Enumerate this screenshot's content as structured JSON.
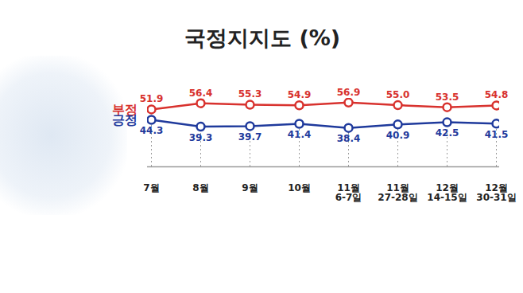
{
  "chart_data": {
    "type": "line",
    "title": "국정지지도 (%)",
    "categories": [
      "7월",
      "8월",
      "9월",
      "10월",
      "11월\n6-7일",
      "11월\n27-28일",
      "12월\n14-15일",
      "12월\n30-31일"
    ],
    "series": [
      {
        "name": "부정",
        "color": "#d8322e",
        "values": [
          51.9,
          56.4,
          55.3,
          54.9,
          56.9,
          55.0,
          53.5,
          54.8
        ],
        "value_labels": [
          "51.9",
          "56.4",
          "55.3",
          "54.9",
          "56.9",
          "55.0",
          "53.5",
          "54.8"
        ]
      },
      {
        "name": "긍정",
        "color": "#1f3a9c",
        "values": [
          44.3,
          39.3,
          39.7,
          41.4,
          38.4,
          40.9,
          42.5,
          41.5
        ],
        "value_labels": [
          "44.3",
          "39.3",
          "39.7",
          "41.4",
          "38.4",
          "40.9",
          "42.5",
          "41.5"
        ]
      }
    ],
    "ylim": [
      10,
      60
    ],
    "tick_labels": "x",
    "data_labels": true,
    "marker": "circle"
  }
}
